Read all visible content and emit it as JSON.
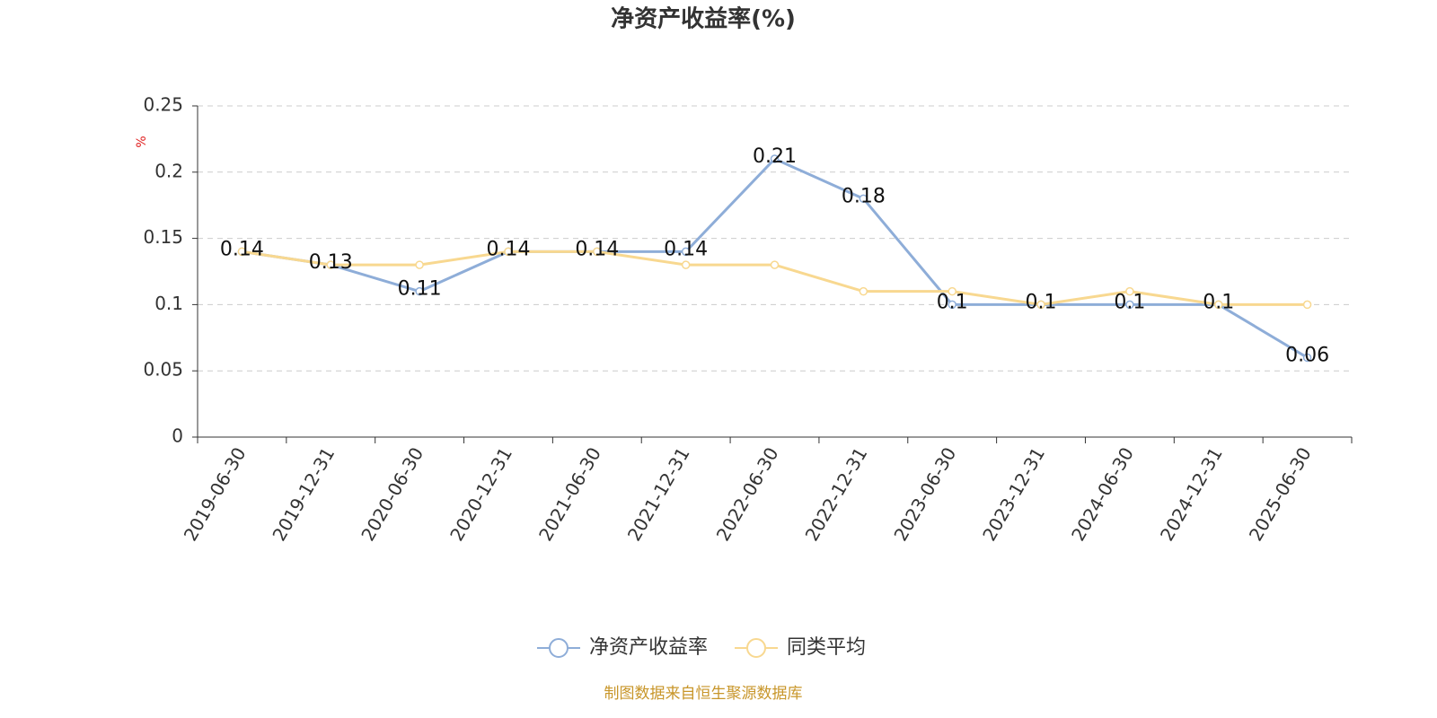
{
  "chart_data": {
    "type": "line",
    "title": "净资产收益率(%)",
    "y_label": "%",
    "source": "制图数据来自恒生聚源数据库",
    "categories": [
      "2019-06-30",
      "2019-12-31",
      "2020-06-30",
      "2020-12-31",
      "2021-06-30",
      "2021-12-31",
      "2022-06-30",
      "2022-12-31",
      "2023-06-30",
      "2023-12-31",
      "2024-06-30",
      "2024-12-31",
      "2025-06-30"
    ],
    "series": [
      {
        "name": "净资产收益率",
        "color": "#8eadd8",
        "values": [
          0.14,
          0.13,
          0.11,
          0.14,
          0.14,
          0.14,
          0.21,
          0.18,
          0.1,
          0.1,
          0.1,
          0.1,
          0.06
        ],
        "data_labels": true
      },
      {
        "name": "同类平均",
        "color": "#f8d890",
        "values": [
          0.14,
          0.13,
          0.13,
          0.14,
          0.14,
          0.13,
          0.13,
          0.11,
          0.11,
          0.1,
          0.11,
          0.1,
          0.1
        ],
        "data_labels": false
      }
    ],
    "ylim": [
      0,
      0.25
    ],
    "yticks": [
      0,
      0.05,
      0.1,
      0.15,
      0.2,
      0.25
    ],
    "grid": true,
    "legend": "bottom"
  }
}
